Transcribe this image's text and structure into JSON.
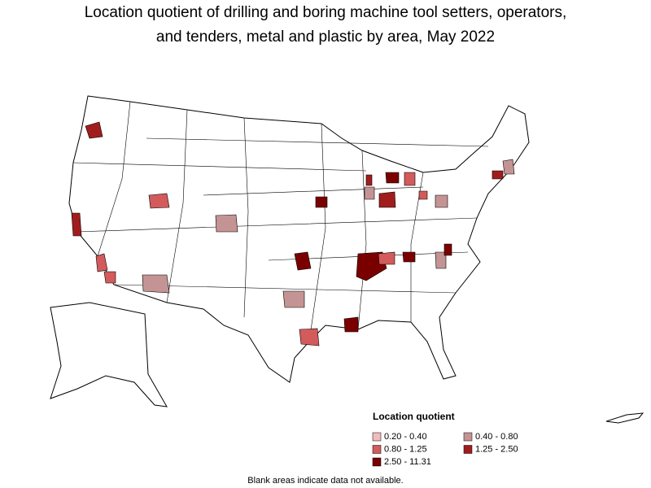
{
  "title": [
    "Location quotient of drilling and boring machine tool setters, operators,",
    "and tenders, metal and plastic by area, May 2022"
  ],
  "legend": {
    "title": "Location quotient",
    "items": [
      {
        "label": "0.20 - 0.40",
        "color": "#f2bcbc"
      },
      {
        "label": "0.40 - 0.80",
        "color": "#c49494"
      },
      {
        "label": "0.80 - 1.25",
        "color": "#d35b5b"
      },
      {
        "label": "1.25 - 2.50",
        "color": "#a11d1d"
      },
      {
        "label": "2.50 - 11.31",
        "color": "#7a0000"
      }
    ]
  },
  "note": "Blank areas indicate data not available."
}
